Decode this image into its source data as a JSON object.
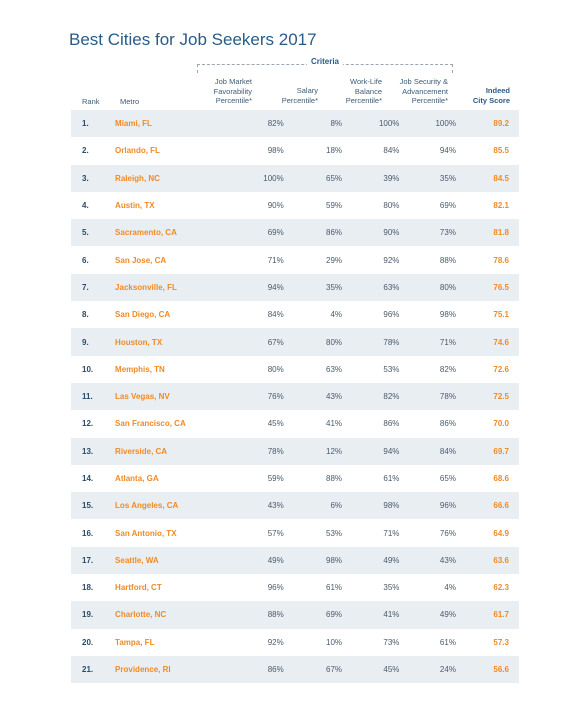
{
  "title": "Best Cities for Job Seekers 2017",
  "criteria_label": "Criteria",
  "headers": {
    "rank": "Rank",
    "metro": "Metro",
    "job_market": [
      "Job Market",
      "Favorability",
      "Percentile*"
    ],
    "salary": [
      "Salary",
      "Percentile*"
    ],
    "work_life": [
      "Work-Life",
      "Balance",
      "Percentile*"
    ],
    "job_security": [
      "Job Security &",
      "Advancement",
      "Percentile*"
    ],
    "score": [
      "Indeed",
      "City Score"
    ]
  },
  "rows": [
    {
      "rank": "1.",
      "metro": "Miami, FL",
      "job_market": "82%",
      "salary": "8%",
      "work_life": "100%",
      "job_security": "100%",
      "score": "89.2"
    },
    {
      "rank": "2.",
      "metro": "Orlando, FL",
      "job_market": "98%",
      "salary": "18%",
      "work_life": "84%",
      "job_security": "94%",
      "score": "85.5"
    },
    {
      "rank": "3.",
      "metro": "Raleigh, NC",
      "job_market": "100%",
      "salary": "65%",
      "work_life": "39%",
      "job_security": "35%",
      "score": "84.5"
    },
    {
      "rank": "4.",
      "metro": "Austin, TX",
      "job_market": "90%",
      "salary": "59%",
      "work_life": "80%",
      "job_security": "69%",
      "score": "82.1"
    },
    {
      "rank": "5.",
      "metro": "Sacramento, CA",
      "job_market": "69%",
      "salary": "86%",
      "work_life": "90%",
      "job_security": "73%",
      "score": "81.8"
    },
    {
      "rank": "6.",
      "metro": "San Jose, CA",
      "job_market": "71%",
      "salary": "29%",
      "work_life": "92%",
      "job_security": "88%",
      "score": "78.6"
    },
    {
      "rank": "7.",
      "metro": "Jacksonville, FL",
      "job_market": "94%",
      "salary": "35%",
      "work_life": "63%",
      "job_security": "80%",
      "score": "76.5"
    },
    {
      "rank": "8.",
      "metro": "San Diego, CA",
      "job_market": "84%",
      "salary": "4%",
      "work_life": "96%",
      "job_security": "98%",
      "score": "75.1"
    },
    {
      "rank": "9.",
      "metro": "Houston, TX",
      "job_market": "67%",
      "salary": "80%",
      "work_life": "78%",
      "job_security": "71%",
      "score": "74.6"
    },
    {
      "rank": "10.",
      "metro": "Memphis, TN",
      "job_market": "80%",
      "salary": "63%",
      "work_life": "53%",
      "job_security": "82%",
      "score": "72.6"
    },
    {
      "rank": "11.",
      "metro": "Las Vegas, NV",
      "job_market": "76%",
      "salary": "43%",
      "work_life": "82%",
      "job_security": "78%",
      "score": "72.5"
    },
    {
      "rank": "12.",
      "metro": "San Francisco, CA",
      "job_market": "45%",
      "salary": "41%",
      "work_life": "86%",
      "job_security": "86%",
      "score": "70.0"
    },
    {
      "rank": "13.",
      "metro": "Riverside, CA",
      "job_market": "78%",
      "salary": "12%",
      "work_life": "94%",
      "job_security": "84%",
      "score": "69.7"
    },
    {
      "rank": "14.",
      "metro": "Atlanta, GA",
      "job_market": "59%",
      "salary": "88%",
      "work_life": "61%",
      "job_security": "65%",
      "score": "68.6"
    },
    {
      "rank": "15.",
      "metro": "Los Angeles, CA",
      "job_market": "43%",
      "salary": "6%",
      "work_life": "98%",
      "job_security": "96%",
      "score": "66.6"
    },
    {
      "rank": "16.",
      "metro": "San Antonio, TX",
      "job_market": "57%",
      "salary": "53%",
      "work_life": "71%",
      "job_security": "76%",
      "score": "64.9"
    },
    {
      "rank": "17.",
      "metro": "Seattle, WA",
      "job_market": "49%",
      "salary": "98%",
      "work_life": "49%",
      "job_security": "43%",
      "score": "63.6"
    },
    {
      "rank": "18.",
      "metro": "Hartford, CT",
      "job_market": "96%",
      "salary": "61%",
      "work_life": "35%",
      "job_security": "4%",
      "score": "62.3"
    },
    {
      "rank": "19.",
      "metro": "Charlotte, NC",
      "job_market": "88%",
      "salary": "69%",
      "work_life": "41%",
      "job_security": "49%",
      "score": "61.7"
    },
    {
      "rank": "20.",
      "metro": "Tampa, FL",
      "job_market": "92%",
      "salary": "10%",
      "work_life": "73%",
      "job_security": "61%",
      "score": "57.3"
    },
    {
      "rank": "21.",
      "metro": "Providence, RI",
      "job_market": "86%",
      "salary": "67%",
      "work_life": "45%",
      "job_security": "24%",
      "score": "56.6"
    }
  ],
  "colors": {
    "title": "#2a5b87",
    "accent": "#f08a24",
    "row_alt": "#e9eef3"
  }
}
